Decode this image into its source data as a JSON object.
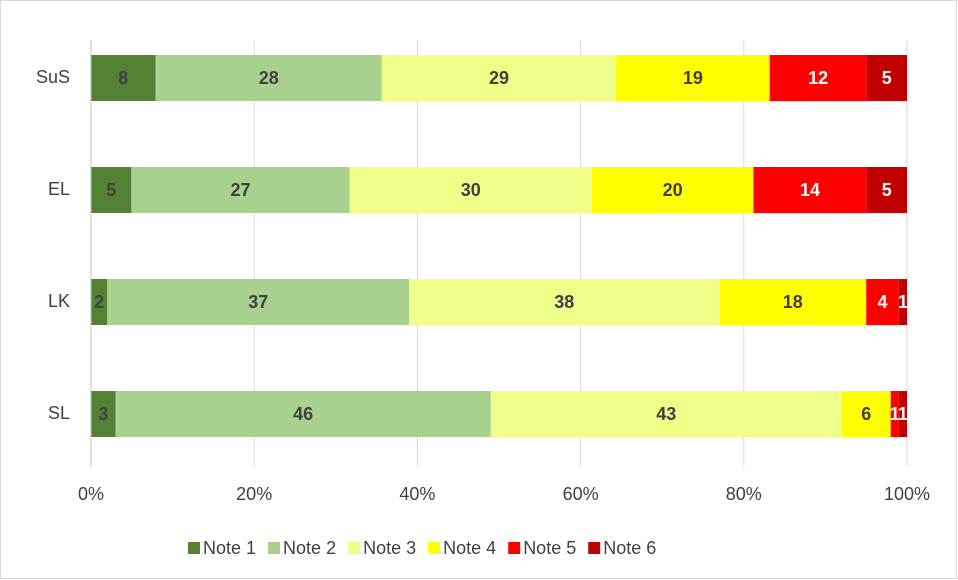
{
  "chart_data": {
    "type": "stacked-bar-100",
    "categories": [
      "SuS",
      "EL",
      "LK",
      "SL"
    ],
    "series": [
      {
        "name": "Note 1",
        "color": "#548235",
        "values": [
          8,
          5,
          2,
          3
        ]
      },
      {
        "name": "Note 2",
        "color": "#a9d18e",
        "values": [
          28,
          27,
          37,
          46
        ]
      },
      {
        "name": "Note 3",
        "color": "#f0ff88",
        "values": [
          29,
          30,
          38,
          43
        ]
      },
      {
        "name": "Note 4",
        "color": "#ffff00",
        "values": [
          19,
          20,
          18,
          6
        ]
      },
      {
        "name": "Note 5",
        "color": "#ff0000",
        "values": [
          12,
          14,
          4,
          1
        ]
      },
      {
        "name": "Note 6",
        "color": "#c00000",
        "values": [
          5,
          5,
          1,
          1
        ]
      }
    ],
    "xlim": [
      0,
      100
    ],
    "xticks": [
      {
        "value": 0,
        "label": "0%"
      },
      {
        "value": 20,
        "label": "20%"
      },
      {
        "value": 40,
        "label": "40%"
      },
      {
        "value": 60,
        "label": "60%"
      },
      {
        "value": 80,
        "label": "80%"
      },
      {
        "value": 100,
        "label": "100%"
      }
    ],
    "grid": true,
    "legend": "bottom"
  }
}
